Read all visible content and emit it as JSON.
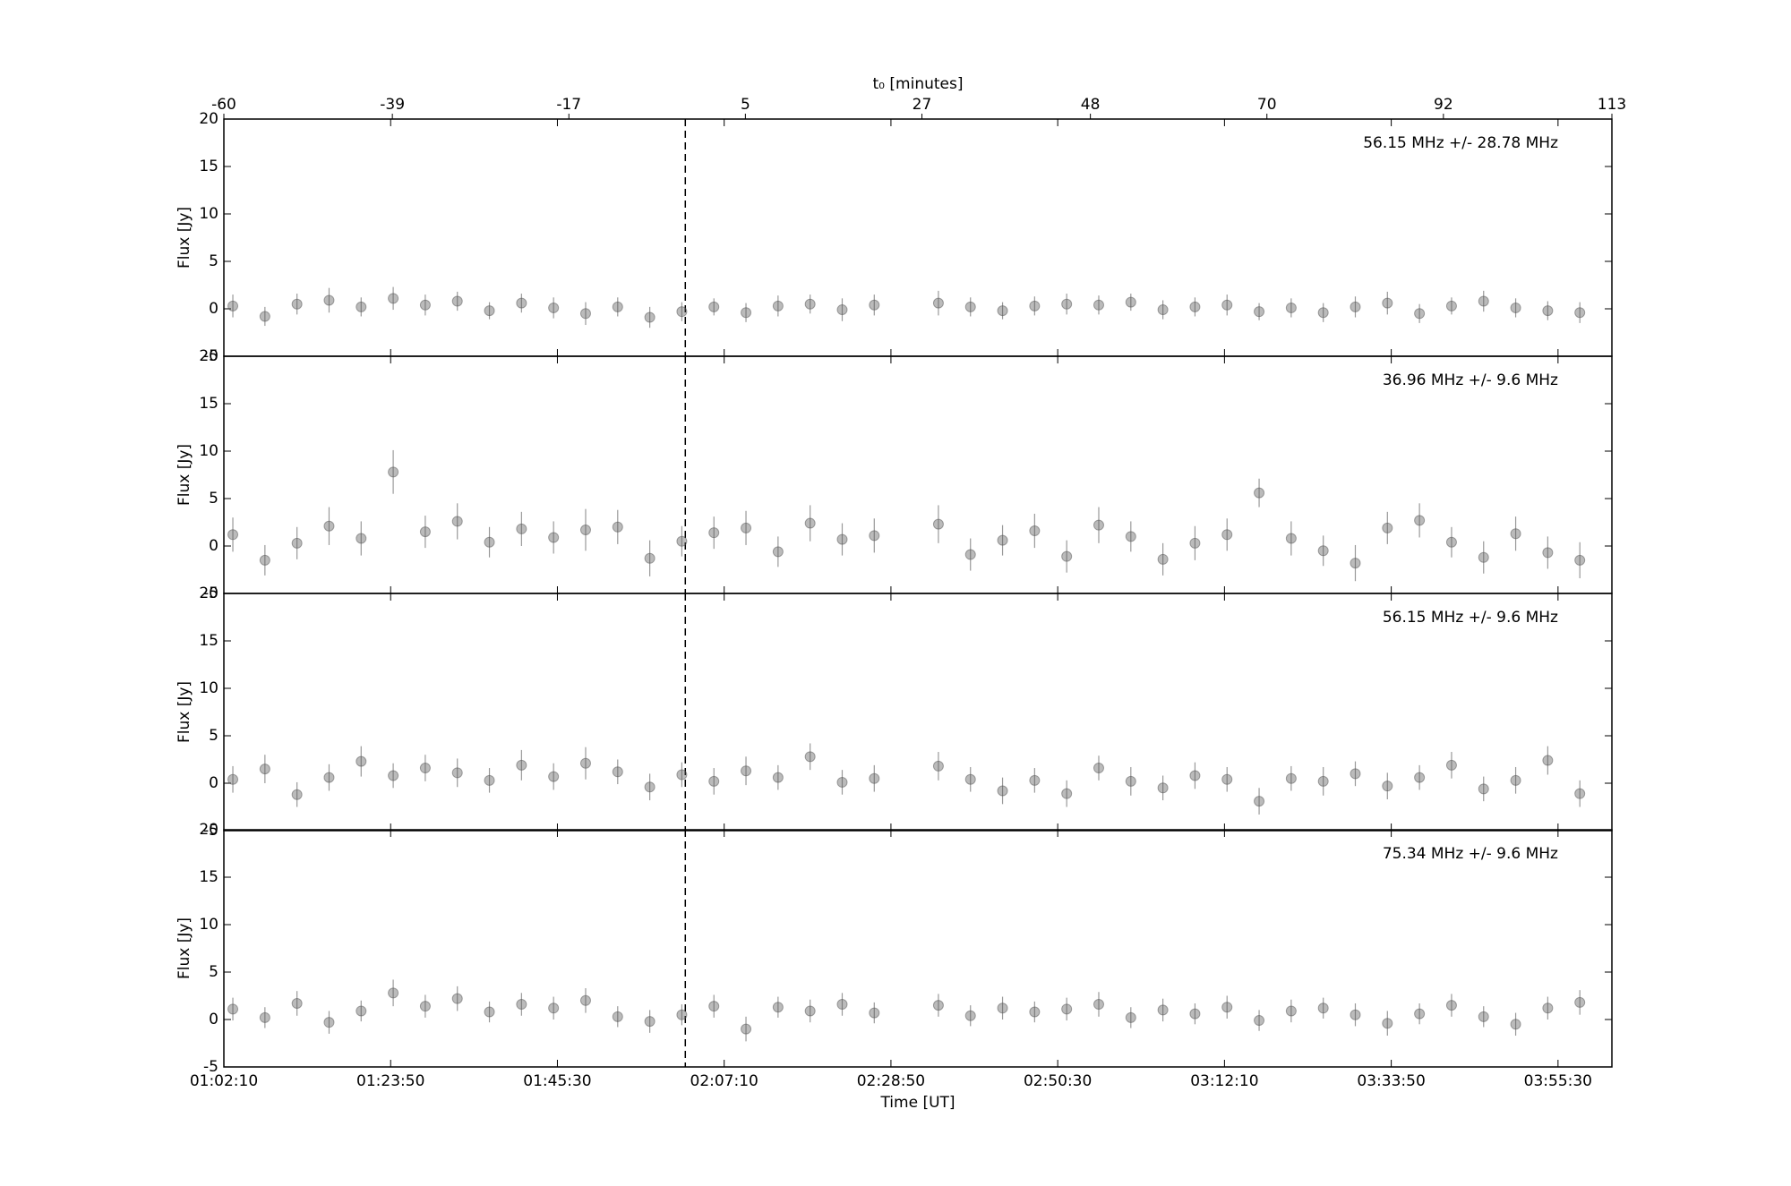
{
  "chart_data": [
    {
      "type": "scatter",
      "annotation": "56.15 MHz +/- 28.78 MHz",
      "ylabel": "Flux [Jy]",
      "color": "#555555",
      "x2label": "t₀ [minutes]",
      "x2lim": [
        -60,
        113
      ],
      "x2ticks": [
        -60,
        -39,
        -17,
        5,
        27,
        48,
        70,
        92,
        113
      ],
      "xlim": [
        3730,
        14550
      ],
      "ylim": [
        -5,
        20
      ],
      "yticks": [
        -5,
        0,
        5,
        10,
        15,
        20
      ],
      "vline": 7327,
      "x": [
        3800,
        4050,
        4300,
        4550,
        4800,
        5050,
        5300,
        5550,
        5800,
        6050,
        6300,
        6550,
        6800,
        7050,
        7300,
        7550,
        7800,
        8050,
        8300,
        8550,
        8800,
        null,
        9300,
        9550,
        9800,
        10050,
        10300,
        10550,
        10800,
        11050,
        11300,
        11550,
        11800,
        12050,
        12300,
        12550,
        12800,
        13050,
        13300,
        13550,
        13800,
        14050,
        14300
      ],
      "values": [
        0.3,
        -0.8,
        0.5,
        0.9,
        0.2,
        1.1,
        0.4,
        0.8,
        -0.2,
        0.6,
        0.1,
        -0.5,
        0.2,
        -0.9,
        -0.3,
        0.2,
        -0.4,
        0.3,
        0.5,
        -0.1,
        0.4,
        null,
        0.6,
        0.2,
        -0.2,
        0.3,
        0.5,
        0.4,
        0.7,
        -0.1,
        0.2,
        0.4,
        -0.3,
        0.1,
        -0.4,
        0.2,
        0.6,
        -0.5,
        0.3,
        0.8,
        0.1,
        -0.2,
        -0.4
      ],
      "errors": [
        1.2,
        1.0,
        1.1,
        1.3,
        1.0,
        1.2,
        1.1,
        1.0,
        0.9,
        1.0,
        1.1,
        1.2,
        1.0,
        1.1,
        1.0,
        0.9,
        1.0,
        1.1,
        1.0,
        1.2,
        1.1,
        null,
        1.3,
        1.0,
        0.9,
        1.0,
        1.1,
        1.0,
        0.9,
        1.0,
        1.0,
        1.1,
        0.9,
        1.0,
        1.0,
        1.1,
        1.2,
        1.0,
        0.9,
        1.1,
        1.0,
        1.0,
        1.1
      ]
    },
    {
      "type": "scatter",
      "annotation": "36.96 MHz +/- 9.6 MHz",
      "ylabel": "Flux [Jy]",
      "color": "#555555",
      "xlim": [
        3730,
        14550
      ],
      "ylim": [
        -5,
        20
      ],
      "yticks": [
        -5,
        0,
        5,
        10,
        15,
        20
      ],
      "vline": 7327,
      "x": [
        3800,
        4050,
        4300,
        4550,
        4800,
        5050,
        5300,
        5550,
        5800,
        6050,
        6300,
        6550,
        6800,
        7050,
        7300,
        7550,
        7800,
        8050,
        8300,
        8550,
        8800,
        null,
        9300,
        9550,
        9800,
        10050,
        10300,
        10550,
        10800,
        11050,
        11300,
        11550,
        11800,
        12050,
        12300,
        12550,
        12800,
        13050,
        13300,
        13550,
        13800,
        14050,
        14300
      ],
      "values": [
        1.2,
        -1.5,
        0.3,
        2.1,
        0.8,
        7.8,
        1.5,
        2.6,
        0.4,
        1.8,
        0.9,
        1.7,
        2.0,
        -1.3,
        0.5,
        1.4,
        1.9,
        -0.6,
        2.4,
        0.7,
        1.1,
        null,
        2.3,
        -0.9,
        0.6,
        1.6,
        -1.1,
        2.2,
        1.0,
        -1.4,
        0.3,
        1.2,
        5.6,
        0.8,
        -0.5,
        -1.8,
        1.9,
        2.7,
        0.4,
        -1.2,
        1.3,
        -0.7,
        -1.5
      ],
      "errors": [
        1.8,
        1.6,
        1.7,
        2.0,
        1.8,
        2.3,
        1.7,
        1.9,
        1.6,
        1.8,
        1.7,
        2.2,
        1.8,
        1.9,
        1.6,
        1.7,
        1.8,
        1.6,
        1.9,
        1.7,
        1.8,
        null,
        2.0,
        1.7,
        1.6,
        1.8,
        1.7,
        1.9,
        1.6,
        1.7,
        1.8,
        1.7,
        1.5,
        1.8,
        1.6,
        1.9,
        1.7,
        1.8,
        1.6,
        1.7,
        1.8,
        1.7,
        1.9
      ]
    },
    {
      "type": "scatter",
      "annotation": "56.15 MHz +/- 9.6 MHz",
      "ylabel": "Flux [Jy]",
      "color": "#555555",
      "xlim": [
        3730,
        14550
      ],
      "ylim": [
        -5,
        20
      ],
      "yticks": [
        -5,
        0,
        5,
        10,
        15,
        20
      ],
      "vline": 7327,
      "x": [
        3800,
        4050,
        4300,
        4550,
        4800,
        5050,
        5300,
        5550,
        5800,
        6050,
        6300,
        6550,
        6800,
        7050,
        7300,
        7550,
        7800,
        8050,
        8300,
        8550,
        8800,
        null,
        9300,
        9550,
        9800,
        10050,
        10300,
        10550,
        10800,
        11050,
        11300,
        11550,
        11800,
        12050,
        12300,
        12550,
        12800,
        13050,
        13300,
        13550,
        13800,
        14050,
        14300
      ],
      "values": [
        0.4,
        1.5,
        -1.2,
        0.6,
        2.3,
        0.8,
        1.6,
        1.1,
        0.3,
        1.9,
        0.7,
        2.1,
        1.2,
        -0.4,
        0.9,
        0.2,
        1.3,
        0.6,
        2.8,
        0.1,
        0.5,
        null,
        1.8,
        0.4,
        -0.8,
        0.3,
        -1.1,
        1.6,
        0.2,
        -0.5,
        0.8,
        0.4,
        -1.9,
        0.5,
        0.2,
        1.0,
        -0.3,
        0.6,
        1.9,
        -0.6,
        0.3,
        2.4,
        -1.1
      ],
      "errors": [
        1.4,
        1.5,
        1.3,
        1.4,
        1.6,
        1.3,
        1.4,
        1.5,
        1.3,
        1.6,
        1.4,
        1.7,
        1.3,
        1.4,
        1.3,
        1.4,
        1.5,
        1.3,
        1.4,
        1.3,
        1.4,
        null,
        1.5,
        1.3,
        1.4,
        1.3,
        1.4,
        1.3,
        1.5,
        1.3,
        1.4,
        1.3,
        1.4,
        1.3,
        1.5,
        1.3,
        1.4,
        1.3,
        1.4,
        1.3,
        1.4,
        1.5,
        1.4
      ]
    },
    {
      "type": "scatter",
      "annotation": "75.34 MHz +/- 9.6 MHz",
      "ylabel": "Flux [Jy]",
      "color": "#555555",
      "xlabel": "Time [UT]",
      "xticks": [
        {
          "value": 3730,
          "label": "01:02:10"
        },
        {
          "value": 5030,
          "label": "01:23:50"
        },
        {
          "value": 6330,
          "label": "01:45:30"
        },
        {
          "value": 7630,
          "label": "02:07:10"
        },
        {
          "value": 8930,
          "label": "02:28:50"
        },
        {
          "value": 10230,
          "label": "02:50:30"
        },
        {
          "value": 11530,
          "label": "03:12:10"
        },
        {
          "value": 12830,
          "label": "03:33:50"
        },
        {
          "value": 14130,
          "label": "03:55:30"
        }
      ],
      "xlim": [
        3730,
        14550
      ],
      "ylim": [
        -5,
        20
      ],
      "yticks": [
        -5,
        0,
        5,
        10,
        15,
        20
      ],
      "vline": 7327,
      "x": [
        3800,
        4050,
        4300,
        4550,
        4800,
        5050,
        5300,
        5550,
        5800,
        6050,
        6300,
        6550,
        6800,
        7050,
        7300,
        7550,
        7800,
        8050,
        8300,
        8550,
        8800,
        null,
        9300,
        9550,
        9800,
        10050,
        10300,
        10550,
        10800,
        11050,
        11300,
        11550,
        11800,
        12050,
        12300,
        12550,
        12800,
        13050,
        13300,
        13550,
        13800,
        14050,
        14300
      ],
      "values": [
        1.1,
        0.2,
        1.7,
        -0.3,
        0.9,
        2.8,
        1.4,
        2.2,
        0.8,
        1.6,
        1.2,
        2.0,
        0.3,
        -0.2,
        0.5,
        1.4,
        -1.0,
        1.3,
        0.9,
        1.6,
        0.7,
        null,
        1.5,
        0.4,
        1.2,
        0.8,
        1.1,
        1.6,
        0.2,
        1.0,
        0.6,
        1.3,
        -0.1,
        0.9,
        1.2,
        0.5,
        -0.4,
        0.6,
        1.5,
        0.3,
        -0.5,
        1.2,
        1.8
      ],
      "errors": [
        1.2,
        1.1,
        1.3,
        1.2,
        1.1,
        1.4,
        1.2,
        1.3,
        1.1,
        1.2,
        1.2,
        1.3,
        1.1,
        1.2,
        1.1,
        1.2,
        1.3,
        1.1,
        1.2,
        1.2,
        1.1,
        null,
        1.2,
        1.1,
        1.2,
        1.1,
        1.2,
        1.3,
        1.1,
        1.2,
        1.1,
        1.2,
        1.1,
        1.2,
        1.1,
        1.2,
        1.3,
        1.1,
        1.2,
        1.1,
        1.2,
        1.2,
        1.3
      ]
    }
  ]
}
